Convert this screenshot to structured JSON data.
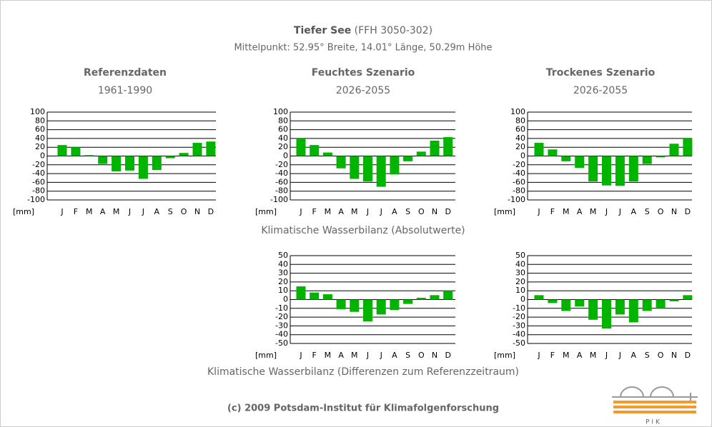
{
  "header": {
    "title": "Tiefer See",
    "title_suffix": "(FFH 3050-302)",
    "subtitle": "Mittelpunkt: 52.95° Breite, 14.01° Länge, 50.29m Höhe"
  },
  "captions": [
    "Klimatische Wasserbilanz (Absolutwerte)",
    "Klimatische Wasserbilanz (Differenzen zum Referenzzeitraum)"
  ],
  "footer": "(c) 2009 Potsdam-Institut für Klimafolgenforschung",
  "logo_text": "P I K",
  "chart_data": [
    {
      "type": "bar",
      "title": "Referenzdaten",
      "subtitle": "1961-1990",
      "unit": "[mm]",
      "color": "#00b400",
      "grid": true,
      "categories": [
        "J",
        "F",
        "M",
        "A",
        "M",
        "J",
        "J",
        "A",
        "S",
        "O",
        "N",
        "D"
      ],
      "values": [
        25,
        20,
        2,
        -18,
        -35,
        -33,
        -52,
        -32,
        -5,
        7,
        30,
        33
      ],
      "ylim": [
        -100,
        100
      ],
      "yticks": [
        -100,
        -80,
        -60,
        -40,
        -20,
        0,
        20,
        40,
        60,
        80,
        100
      ]
    },
    {
      "type": "bar",
      "title": "Feuchtes Szenario",
      "subtitle": "2026-2055",
      "unit": "[mm]",
      "color": "#00b400",
      "grid": true,
      "categories": [
        "J",
        "F",
        "M",
        "A",
        "M",
        "J",
        "J",
        "A",
        "S",
        "O",
        "N",
        "D"
      ],
      "values": [
        40,
        25,
        8,
        -28,
        -52,
        -58,
        -70,
        -42,
        -12,
        10,
        35,
        43
      ],
      "ylim": [
        -100,
        100
      ],
      "yticks": [
        -100,
        -80,
        -60,
        -40,
        -20,
        0,
        20,
        40,
        60,
        80,
        100
      ]
    },
    {
      "type": "bar",
      "title": "Trockenes Szenario",
      "subtitle": "2026-2055",
      "unit": "[mm]",
      "color": "#00b400",
      "grid": true,
      "categories": [
        "J",
        "F",
        "M",
        "A",
        "M",
        "J",
        "J",
        "A",
        "S",
        "O",
        "N",
        "D"
      ],
      "values": [
        30,
        15,
        -12,
        -27,
        -58,
        -67,
        -68,
        -58,
        -18,
        -3,
        28,
        40
      ],
      "ylim": [
        -100,
        100
      ],
      "yticks": [
        -100,
        -80,
        -60,
        -40,
        -20,
        0,
        20,
        40,
        60,
        80,
        100
      ]
    },
    {
      "type": "bar",
      "unit": "[mm]",
      "color": "#00b400",
      "grid": true,
      "categories": [
        "J",
        "F",
        "M",
        "A",
        "M",
        "J",
        "J",
        "A",
        "S",
        "O",
        "N",
        "D"
      ],
      "values": [
        15,
        8,
        6,
        -11,
        -14,
        -25,
        -17,
        -12,
        -5,
        2,
        5,
        10
      ],
      "ylim": [
        -50,
        50
      ],
      "yticks": [
        -50,
        -40,
        -30,
        -20,
        -10,
        0,
        10,
        20,
        30,
        40,
        50
      ]
    },
    {
      "type": "bar",
      "unit": "[mm]",
      "color": "#00b400",
      "grid": true,
      "categories": [
        "J",
        "F",
        "M",
        "A",
        "M",
        "J",
        "J",
        "A",
        "S",
        "O",
        "N",
        "D"
      ],
      "values": [
        5,
        -4,
        -13,
        -8,
        -23,
        -33,
        -17,
        -26,
        -13,
        -10,
        -2,
        5
      ],
      "ylim": [
        -50,
        50
      ],
      "yticks": [
        -50,
        -40,
        -30,
        -20,
        -10,
        0,
        10,
        20,
        30,
        40,
        50
      ]
    }
  ]
}
